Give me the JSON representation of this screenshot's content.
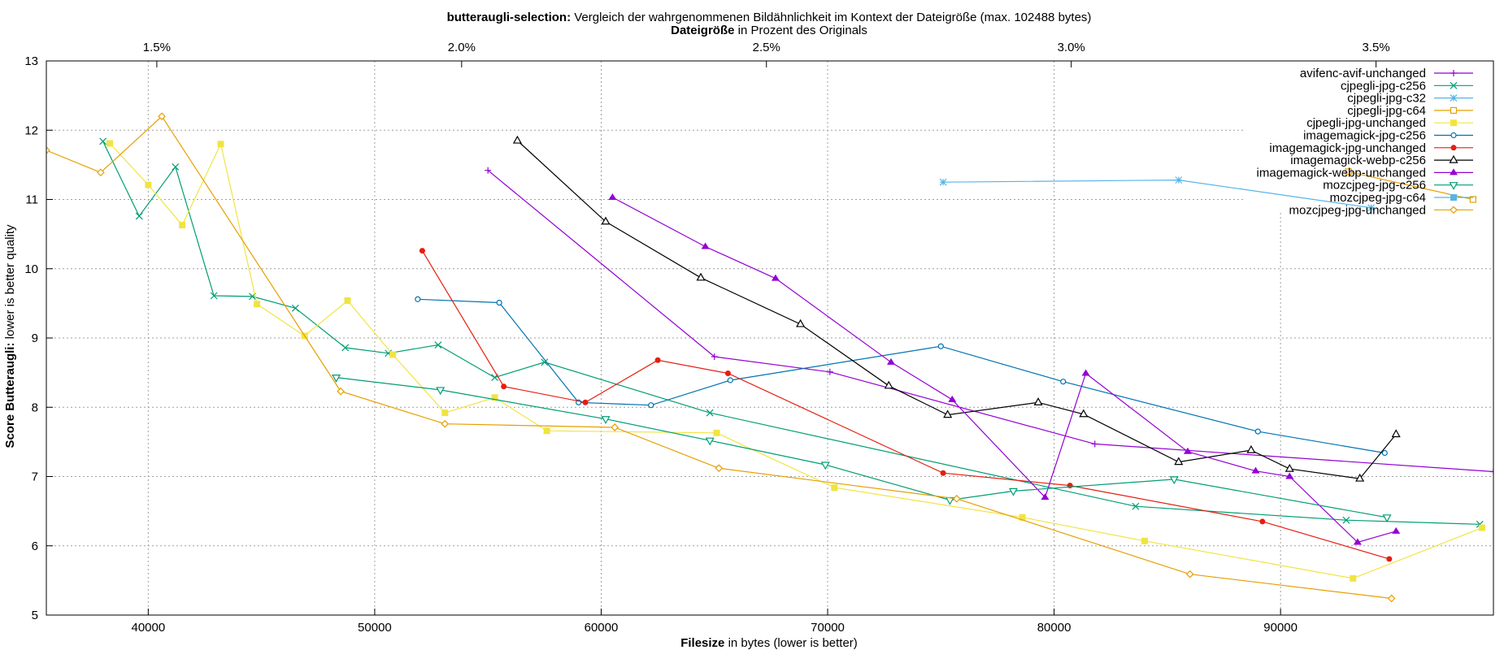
{
  "chart_data": {
    "type": "line",
    "title_bold": "butteraugli-selection:",
    "title_rest": " Vergleich der wahrgenommenen Bildähnlichkeit im Kontext der Dateigröße (max. 102488 bytes)",
    "top_axis_label_bold": "Dateigröße",
    "top_axis_label_rest": " in Prozent des Originals",
    "xlabel_bold": "Filesize",
    "xlabel_rest": " in bytes (lower is better)",
    "ylabel_bold": "Score Butteraugli:",
    "ylabel_rest": " lower is better quality",
    "xlim": [
      35500,
      99400
    ],
    "ylim": [
      5,
      13
    ],
    "x_ticks": [
      40000,
      50000,
      60000,
      70000,
      80000,
      90000
    ],
    "x_tick_labels": [
      "40000",
      "50000",
      "60000",
      "70000",
      "80000",
      "90000"
    ],
    "y_ticks": [
      5,
      6,
      7,
      8,
      9,
      10,
      11,
      12,
      13
    ],
    "y_tick_labels": [
      "5",
      "6",
      "7",
      "8",
      "9",
      "10",
      "11",
      "12",
      "13"
    ],
    "top_ticks": [
      1.5,
      2.0,
      2.5,
      3.0,
      3.5
    ],
    "top_tick_labels": [
      "1.5%",
      "2.0%",
      "2.5%",
      "3.0%",
      "3.5%"
    ],
    "top_axis_reference_bytes": 2691900,
    "grid": true,
    "legend_position": "top-right",
    "series": [
      {
        "name": "avifenc-avif-unchanged",
        "color": "#9400d3",
        "marker": "plus",
        "x": [
          55000,
          65000,
          70100,
          81800,
          99400
        ],
        "y": [
          11.42,
          8.73,
          8.51,
          7.47,
          7.07
        ]
      },
      {
        "name": "cjpegli-jpg-c256",
        "color": "#009e73",
        "marker": "cross",
        "x": [
          38000,
          39600,
          41200,
          42900,
          44600,
          46500,
          48700,
          50600,
          52800,
          55300,
          57500,
          64800,
          83600,
          92900,
          98800
        ],
        "y": [
          11.84,
          10.76,
          11.47,
          9.61,
          9.6,
          9.43,
          8.86,
          8.78,
          8.9,
          8.43,
          8.65,
          7.92,
          6.57,
          6.37,
          6.31
        ]
      },
      {
        "name": "cjpegli-jpg-c32",
        "color": "#56b4e9",
        "marker": "asterisk",
        "x": [
          75100,
          85500,
          94000
        ],
        "y": [
          11.25,
          11.28,
          10.88
        ]
      },
      {
        "name": "cjpegli-jpg-c64",
        "color": "#e69f00",
        "marker": "square",
        "x": [
          93000,
          98500
        ],
        "y": [
          11.4,
          11.0
        ]
      },
      {
        "name": "cjpegli-jpg-unchanged",
        "color": "#f0e442",
        "marker": "filled-square",
        "x": [
          38300,
          40000,
          41500,
          43200,
          44800,
          46900,
          48800,
          50800,
          53100,
          55300,
          57600,
          65100,
          70300,
          78600,
          84000,
          93200,
          98900
        ],
        "y": [
          11.81,
          11.21,
          10.63,
          11.8,
          9.49,
          9.03,
          9.54,
          8.76,
          7.92,
          8.14,
          7.66,
          7.63,
          6.84,
          6.41,
          6.07,
          5.53,
          6.26
        ]
      },
      {
        "name": "imagemagick-jpg-c256",
        "color": "#0072b2",
        "marker": "circle",
        "x": [
          51900,
          55500,
          59000,
          62200,
          65700,
          75000,
          80400,
          89000,
          94600
        ],
        "y": [
          9.56,
          9.51,
          8.07,
          8.03,
          8.39,
          8.88,
          8.37,
          7.65,
          7.34
        ]
      },
      {
        "name": "imagemagick-jpg-unchanged",
        "color": "#e51e10",
        "marker": "filled-circle",
        "x": [
          52100,
          55700,
          59300,
          62500,
          65600,
          75100,
          80700,
          89200,
          94800
        ],
        "y": [
          10.26,
          8.3,
          8.07,
          8.68,
          8.49,
          7.05,
          6.87,
          6.35,
          5.81
        ]
      },
      {
        "name": "imagemagick-webp-c256",
        "color": "#000000",
        "marker": "triangle",
        "x": [
          56300,
          60200,
          64400,
          68800,
          72700,
          75300,
          79300,
          81300,
          85500,
          88700,
          90400,
          93500,
          95100
        ],
        "y": [
          11.85,
          10.68,
          9.87,
          9.2,
          8.31,
          7.89,
          8.07,
          7.9,
          7.21,
          7.38,
          7.11,
          6.97,
          7.61
        ]
      },
      {
        "name": "imagemagick-webp-unchanged",
        "color": "#9400d3",
        "marker": "filled-triangle",
        "x": [
          60500,
          64600,
          67700,
          72800,
          75500,
          79600,
          81400,
          85900,
          88900,
          90400,
          93400,
          95100
        ],
        "y": [
          11.03,
          10.32,
          9.86,
          8.65,
          8.11,
          6.7,
          8.49,
          7.36,
          7.08,
          7.0,
          6.05,
          6.21
        ]
      },
      {
        "name": "mozcjpeg-jpg-c256",
        "color": "#009e73",
        "marker": "inverted-triangle",
        "x": [
          48300,
          52900,
          60200,
          64800,
          69900,
          75400,
          78200,
          85300,
          94700
        ],
        "y": [
          8.43,
          8.25,
          7.83,
          7.52,
          7.17,
          6.66,
          6.79,
          6.96,
          6.41
        ]
      },
      {
        "name": "mozcjpeg-jpg-c64",
        "color": "#56b4e9",
        "marker": "filled-square",
        "x": [],
        "y": []
      },
      {
        "name": "mozcjpeg-jpg-unchanged",
        "color": "#e69f00",
        "marker": "diamond",
        "x": [
          35500,
          37900,
          40600,
          48500,
          53100,
          60600,
          65200,
          75700,
          86000,
          94900
        ],
        "y": [
          11.71,
          11.39,
          12.2,
          8.23,
          7.76,
          7.71,
          7.12,
          6.68,
          5.59,
          5.24
        ]
      }
    ]
  }
}
